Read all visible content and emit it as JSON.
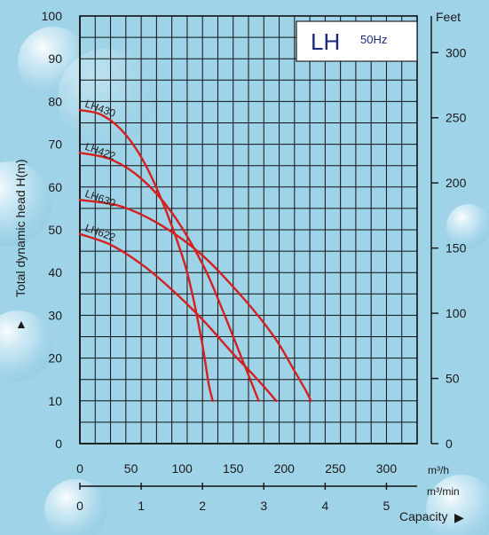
{
  "chart_data": {
    "type": "line",
    "legend_box": {
      "model": "LH",
      "frequency": "50Hz"
    },
    "ylabel": "Total dynamic head H(m)",
    "ylabel_arrow": "▲",
    "y_ticks": [
      0,
      10,
      20,
      30,
      40,
      50,
      60,
      70,
      80,
      90,
      100
    ],
    "ylim": [
      0,
      100
    ],
    "y2_unit": "Feet",
    "y2_ticks": [
      0,
      50,
      100,
      150,
      200,
      250,
      300
    ],
    "x_ticks_m3h": [
      0,
      50,
      100,
      150,
      200,
      250,
      300
    ],
    "x_unit_m3h": "m³/h",
    "xlim_m3h": [
      0,
      330
    ],
    "x_ticks_m3min": [
      0,
      1,
      2,
      3,
      4,
      5
    ],
    "x_unit_m3min": "m³/min",
    "xlabel": "Capacity",
    "xlabel_arrow": "▶",
    "grid": true,
    "series": [
      {
        "name": "LH430",
        "x": [
          0,
          20,
          40,
          60,
          80,
          100,
          110,
          120,
          126,
          130
        ],
        "y": [
          78,
          77,
          73.5,
          67,
          57,
          44,
          35,
          23,
          14,
          10
        ]
      },
      {
        "name": "LH422",
        "x": [
          0,
          30,
          60,
          90,
          120,
          140,
          160,
          170,
          175
        ],
        "y": [
          68,
          66.5,
          62,
          54,
          42,
          31,
          19,
          13,
          10
        ]
      },
      {
        "name": "LH630",
        "x": [
          0,
          40,
          80,
          120,
          160,
          190,
          210,
          222,
          226
        ],
        "y": [
          57,
          55.5,
          51,
          44,
          34,
          25,
          17,
          12,
          10
        ]
      },
      {
        "name": "LH622",
        "x": [
          0,
          30,
          60,
          90,
          120,
          150,
          170,
          185,
          192
        ],
        "y": [
          49,
          46.5,
          42,
          36,
          29,
          21,
          16,
          12,
          10
        ]
      }
    ]
  }
}
